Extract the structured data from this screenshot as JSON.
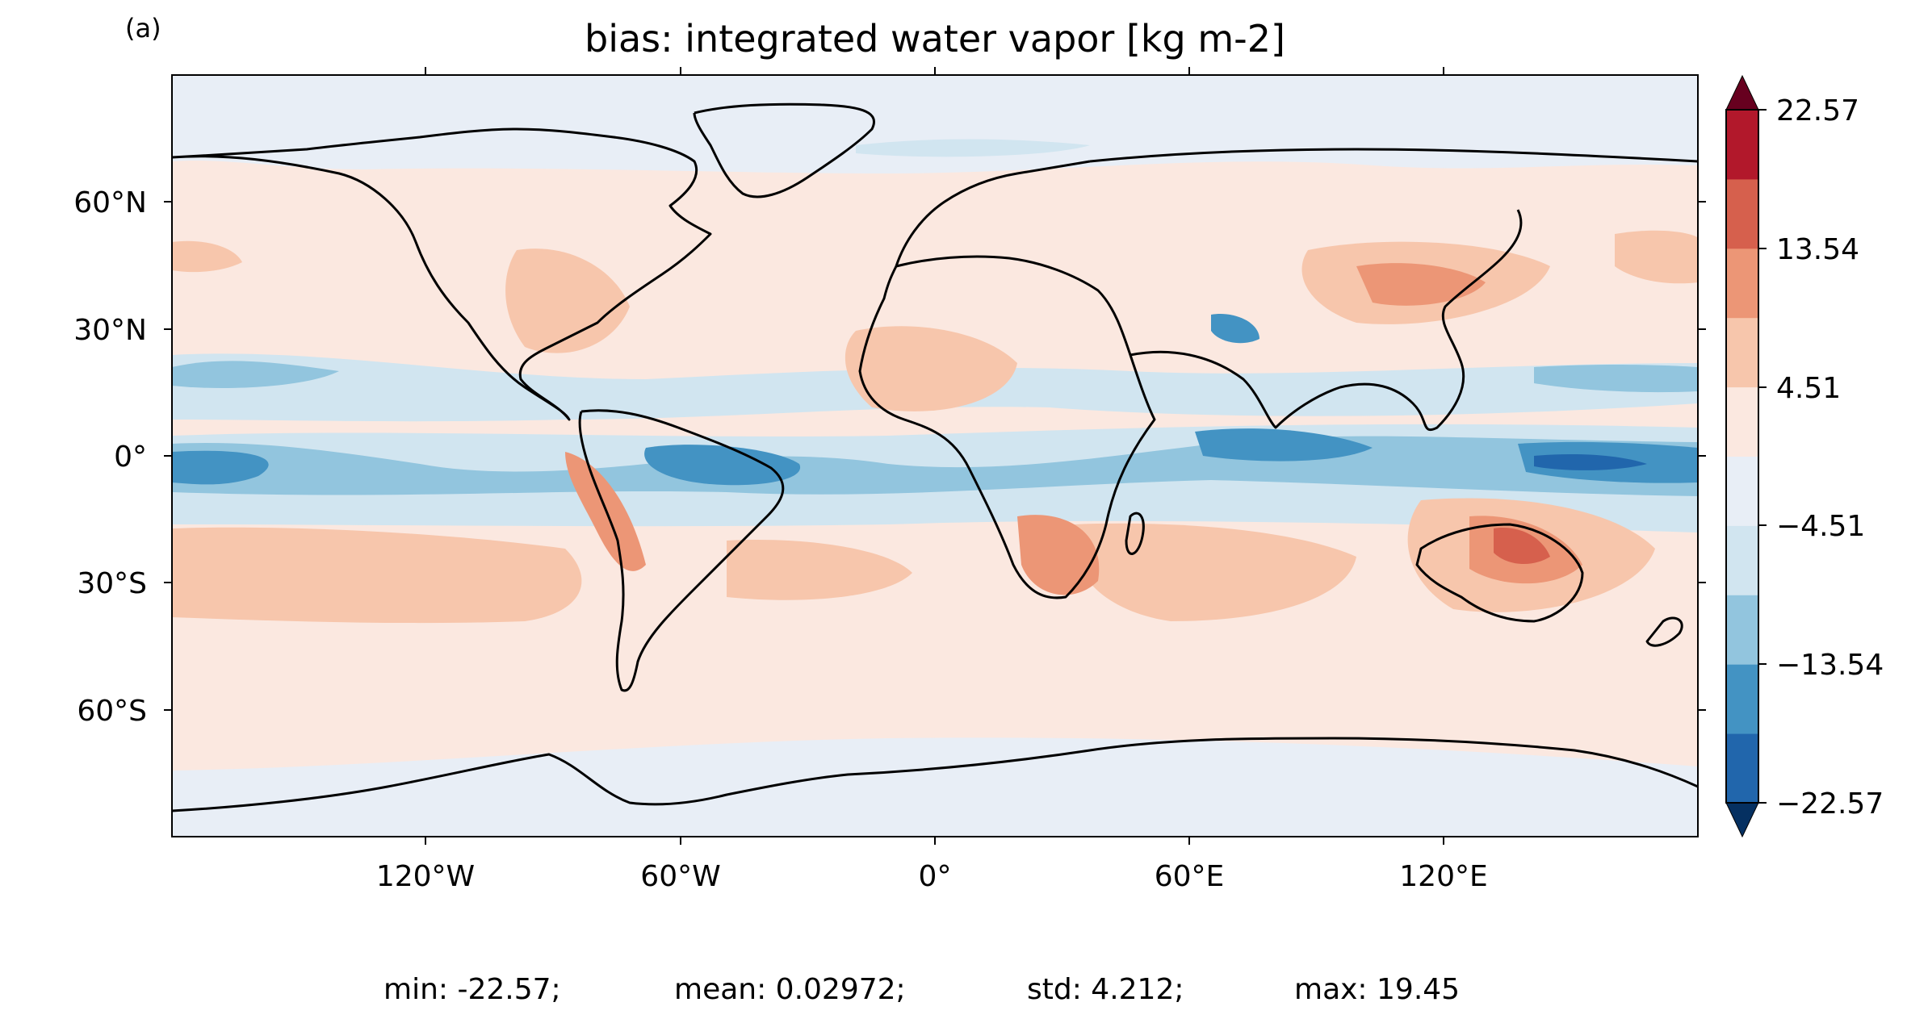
{
  "panel_label": "(a)",
  "title": "bias: integrated water vapor [kg m-2]",
  "axes": {
    "lon_ticks": [
      "120°W",
      "60°W",
      "0°",
      "60°E",
      "120°E"
    ],
    "lat_ticks": [
      "60°N",
      "30°N",
      "0°",
      "30°S",
      "60°S"
    ]
  },
  "colorbar": {
    "extend": "both",
    "tick_labels": [
      "22.57",
      "13.54",
      "4.51",
      "−4.51",
      "−13.54",
      "−22.57"
    ],
    "colors": {
      "over": "#67001f",
      "under": "#053061",
      "levels": [
        "#2166ac",
        "#4393c3",
        "#92c5de",
        "#d1e5f0",
        "#e8eef6",
        "#fbe8e0",
        "#f7c6ac",
        "#ec9676",
        "#d6604d",
        "#b2182b"
      ]
    }
  },
  "stats": {
    "min": "min: -22.57;",
    "mean": "mean: 0.02972;",
    "std": "std: 4.212;",
    "max": "max: 19.45"
  }
}
